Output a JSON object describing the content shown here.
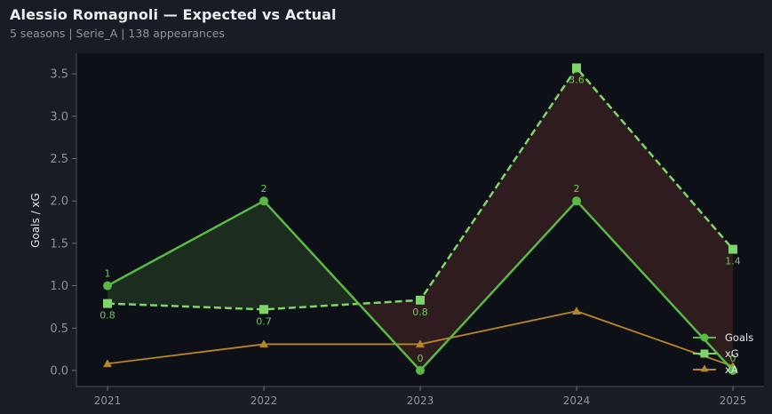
{
  "header": {
    "title": "Alessio Romagnoli — Expected vs Actual",
    "subtitle": "5 seasons | Serie_A | 138 appearances"
  },
  "colors": {
    "background": "#181c24",
    "plot_background": "#0d1017",
    "goals": "#5ab946",
    "xg": "#7ed66a",
    "xa": "#b7862a",
    "overperform_fill": "#1c2c1f",
    "underperform_fill": "#2e1c1f"
  },
  "chart_data": {
    "type": "line",
    "title": "Alessio Romagnoli — Expected vs Actual",
    "subtitle": "5 seasons | Serie_A | 138 appearances",
    "xlabel": "",
    "ylabel": "Goals / xG",
    "categories": [
      "2021",
      "2022",
      "2023",
      "2024",
      "2025"
    ],
    "ylim": [
      -0.15,
      3.7
    ],
    "yticks": [
      0.0,
      0.5,
      1.0,
      1.5,
      2.0,
      2.5,
      3.0,
      3.5
    ],
    "ytick_labels": [
      "0.0",
      "0.5",
      "1.0",
      "1.5",
      "2.0",
      "2.5",
      "3.0",
      "3.5"
    ],
    "grid": false,
    "legend_position": "lower right",
    "series": [
      {
        "name": "Goals",
        "values": [
          1,
          2,
          0,
          2,
          0
        ],
        "labels": [
          "1",
          "2",
          "0",
          "2",
          "0"
        ],
        "marker": "circle",
        "style": "solid"
      },
      {
        "name": "xG",
        "values": [
          0.79,
          0.72,
          0.83,
          3.57,
          1.43
        ],
        "labels": [
          "0.8",
          "0.7",
          "0.8",
          "3.6",
          "1.4"
        ],
        "marker": "square",
        "style": "dashed"
      },
      {
        "name": "xA",
        "values": [
          0.08,
          0.31,
          0.31,
          0.7,
          0.05
        ],
        "marker": "triangle",
        "style": "solid"
      }
    ],
    "annotations": "Green shading where Goals > xG, red shading where Goals < xG"
  },
  "legend": {
    "items": [
      {
        "label": "Goals"
      },
      {
        "label": "xG"
      },
      {
        "label": "xA"
      }
    ]
  }
}
